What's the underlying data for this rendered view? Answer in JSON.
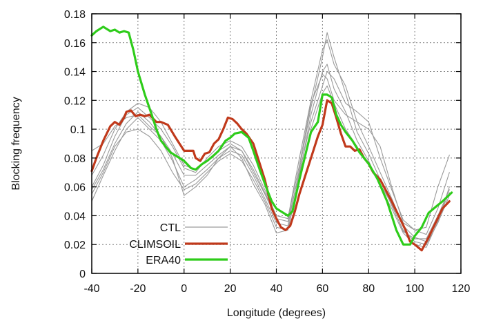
{
  "chart_data": {
    "type": "line",
    "xlabel": "Longitude (degrees)",
    "ylabel": "Blocking frequency",
    "xlim": [
      -40,
      120
    ],
    "ylim": [
      0,
      0.18
    ],
    "xticks": [
      -40,
      -20,
      0,
      20,
      40,
      60,
      80,
      100,
      120
    ],
    "yticks": [
      0,
      0.02,
      0.04,
      0.06,
      0.08,
      0.1,
      0.12,
      0.14,
      0.16,
      0.18
    ],
    "ytick_labels": [
      "0",
      "0.02",
      "0.04",
      "0.06",
      "0.08",
      "0.1",
      "0.12",
      "0.14",
      "0.16",
      "0.18"
    ],
    "grid": true,
    "legend_position": "bottom-left",
    "legend": [
      {
        "label": "CTL",
        "color": "#9a9a9a"
      },
      {
        "label": "CLIMSOIL",
        "color": "#c0391b"
      },
      {
        "label": "ERA40",
        "color": "#2ecc1a"
      }
    ],
    "series": [
      {
        "name": "CTL",
        "color": "#9a9a9a",
        "width": 1.1,
        "x": [
          -40,
          -35,
          -30,
          -25,
          -20,
          -15,
          -10,
          -5,
          0,
          5,
          10,
          15,
          20,
          25,
          30,
          35,
          40,
          45,
          50,
          55,
          60,
          62,
          65,
          70,
          75,
          80,
          85,
          90,
          95,
          100,
          105,
          110,
          115
        ],
        "y": [
          0.06,
          0.075,
          0.095,
          0.11,
          0.115,
          0.108,
          0.1,
          0.088,
          0.073,
          0.07,
          0.08,
          0.088,
          0.092,
          0.088,
          0.075,
          0.058,
          0.04,
          0.038,
          0.08,
          0.12,
          0.155,
          0.162,
          0.145,
          0.13,
          0.105,
          0.088,
          0.07,
          0.052,
          0.033,
          0.025,
          0.022,
          0.038,
          0.056
        ]
      },
      {
        "name": "",
        "color": "#9a9a9a",
        "width": 1.1,
        "x": [
          -40,
          -35,
          -30,
          -25,
          -20,
          -15,
          -10,
          -5,
          0,
          5,
          10,
          15,
          20,
          25,
          30,
          35,
          40,
          45,
          50,
          55,
          60,
          62,
          65,
          70,
          75,
          80,
          85,
          90,
          95,
          100,
          105,
          110,
          115
        ],
        "y": [
          0.05,
          0.068,
          0.085,
          0.1,
          0.108,
          0.1,
          0.092,
          0.078,
          0.06,
          0.065,
          0.072,
          0.08,
          0.085,
          0.082,
          0.068,
          0.052,
          0.035,
          0.033,
          0.072,
          0.115,
          0.15,
          0.167,
          0.15,
          0.125,
          0.098,
          0.083,
          0.065,
          0.047,
          0.03,
          0.022,
          0.02,
          0.035,
          0.054
        ]
      },
      {
        "name": "",
        "color": "#9a9a9a",
        "width": 1.1,
        "x": [
          -40,
          -35,
          -30,
          -25,
          -20,
          -15,
          -10,
          -5,
          0,
          5,
          10,
          15,
          20,
          25,
          30,
          35,
          40,
          45,
          50,
          55,
          60,
          62,
          65,
          70,
          75,
          80,
          85,
          90,
          95,
          100,
          105,
          110,
          115
        ],
        "y": [
          0.068,
          0.082,
          0.1,
          0.112,
          0.118,
          0.115,
          0.105,
          0.09,
          0.075,
          0.072,
          0.078,
          0.085,
          0.09,
          0.085,
          0.07,
          0.055,
          0.038,
          0.036,
          0.07,
          0.105,
          0.13,
          0.14,
          0.135,
          0.118,
          0.112,
          0.105,
          0.08,
          0.058,
          0.037,
          0.03,
          0.027,
          0.045,
          0.07
        ]
      },
      {
        "name": "",
        "color": "#9a9a9a",
        "width": 1.1,
        "x": [
          -40,
          -35,
          -30,
          -25,
          -20,
          -15,
          -10,
          -5,
          0,
          5,
          10,
          15,
          20,
          25,
          30,
          35,
          40,
          45,
          50,
          55,
          60,
          62,
          65,
          70,
          75,
          80,
          85,
          90,
          95,
          100,
          105,
          110,
          115
        ],
        "y": [
          0.055,
          0.07,
          0.088,
          0.098,
          0.1,
          0.095,
          0.085,
          0.07,
          0.058,
          0.062,
          0.07,
          0.078,
          0.083,
          0.078,
          0.065,
          0.05,
          0.032,
          0.03,
          0.068,
          0.11,
          0.14,
          0.145,
          0.128,
          0.112,
          0.092,
          0.078,
          0.06,
          0.045,
          0.028,
          0.02,
          0.018,
          0.036,
          0.06
        ]
      },
      {
        "name": "",
        "color": "#9a9a9a",
        "width": 1.1,
        "x": [
          -40,
          -35,
          -30,
          -25,
          -20,
          -15,
          -10,
          -5,
          0,
          5,
          10,
          15,
          20,
          25,
          30,
          35,
          40,
          45,
          50,
          55,
          60,
          62,
          65,
          70,
          75,
          80,
          85,
          90,
          95,
          100,
          105,
          110,
          115
        ],
        "y": [
          0.085,
          0.09,
          0.102,
          0.108,
          0.11,
          0.102,
          0.095,
          0.083,
          0.068,
          0.068,
          0.075,
          0.082,
          0.088,
          0.085,
          0.072,
          0.056,
          0.04,
          0.038,
          0.075,
          0.118,
          0.138,
          0.135,
          0.12,
          0.11,
          0.105,
          0.1,
          0.088,
          0.06,
          0.035,
          0.03,
          0.032,
          0.06,
          0.082
        ]
      },
      {
        "name": "",
        "color": "#9a9a9a",
        "width": 1.1,
        "x": [
          -40,
          -35,
          -30,
          -25,
          -20,
          -15,
          -10,
          -5,
          0,
          5,
          10,
          15,
          20,
          25,
          30,
          35,
          40,
          45,
          50,
          55,
          60,
          62,
          65,
          70,
          75,
          80,
          85,
          90,
          95,
          100,
          105,
          110,
          115
        ],
        "y": [
          0.058,
          0.072,
          0.09,
          0.104,
          0.112,
          0.105,
          0.095,
          0.08,
          0.054,
          0.06,
          0.068,
          0.08,
          0.088,
          0.08,
          0.062,
          0.048,
          0.028,
          0.03,
          0.065,
          0.1,
          0.125,
          0.13,
          0.118,
          0.1,
          0.088,
          0.075,
          0.062,
          0.048,
          0.029,
          0.024,
          0.024,
          0.04,
          0.058
        ]
      },
      {
        "name": "CLIMSOIL",
        "color": "#c0391b",
        "width": 3.2,
        "x": [
          -40,
          -38,
          -35,
          -32,
          -30,
          -28,
          -26,
          -25,
          -23,
          -21,
          -19,
          -17,
          -15,
          -12,
          -10,
          -7,
          -4,
          -2,
          0,
          2,
          4,
          5,
          7,
          9,
          11,
          13,
          15,
          17,
          19,
          21,
          23,
          25,
          27,
          30,
          32,
          35,
          38,
          40,
          42,
          44,
          46,
          48,
          50,
          52,
          55,
          58,
          60,
          62,
          64,
          66,
          68,
          70,
          72,
          74,
          76,
          78,
          80,
          82,
          85,
          88,
          90,
          93,
          96,
          98,
          100,
          103,
          106,
          109,
          112,
          115
        ],
        "y": [
          0.071,
          0.08,
          0.092,
          0.102,
          0.105,
          0.103,
          0.108,
          0.112,
          0.113,
          0.109,
          0.11,
          0.109,
          0.11,
          0.105,
          0.105,
          0.103,
          0.095,
          0.09,
          0.085,
          0.085,
          0.085,
          0.08,
          0.078,
          0.083,
          0.084,
          0.09,
          0.093,
          0.1,
          0.108,
          0.107,
          0.104,
          0.1,
          0.097,
          0.09,
          0.08,
          0.065,
          0.045,
          0.038,
          0.032,
          0.03,
          0.033,
          0.043,
          0.055,
          0.065,
          0.08,
          0.095,
          0.103,
          0.12,
          0.118,
          0.108,
          0.097,
          0.088,
          0.088,
          0.085,
          0.086,
          0.08,
          0.076,
          0.07,
          0.065,
          0.056,
          0.05,
          0.04,
          0.03,
          0.022,
          0.02,
          0.016,
          0.025,
          0.035,
          0.045,
          0.05
        ]
      },
      {
        "name": "ERA40",
        "color": "#2ecc1a",
        "width": 3.2,
        "x": [
          -40,
          -38,
          -35,
          -32,
          -30,
          -28,
          -26,
          -24,
          -22,
          -20,
          -17,
          -14,
          -12,
          -10,
          -8,
          -6,
          -4,
          -2,
          0,
          3,
          5,
          8,
          10,
          13,
          15,
          18,
          20,
          22,
          25,
          28,
          30,
          33,
          36,
          38,
          40,
          42,
          45,
          47,
          50,
          53,
          55,
          58,
          60,
          62,
          64,
          66,
          68,
          70,
          73,
          76,
          80,
          84,
          88,
          92,
          95,
          98,
          100,
          103,
          106,
          109,
          112,
          116
        ],
        "y": [
          0.165,
          0.168,
          0.171,
          0.168,
          0.169,
          0.167,
          0.168,
          0.167,
          0.155,
          0.14,
          0.124,
          0.11,
          0.1,
          0.092,
          0.088,
          0.084,
          0.082,
          0.08,
          0.078,
          0.073,
          0.072,
          0.076,
          0.078,
          0.082,
          0.085,
          0.092,
          0.094,
          0.097,
          0.098,
          0.094,
          0.085,
          0.071,
          0.058,
          0.05,
          0.045,
          0.043,
          0.04,
          0.043,
          0.065,
          0.085,
          0.098,
          0.105,
          0.124,
          0.124,
          0.122,
          0.11,
          0.103,
          0.098,
          0.092,
          0.084,
          0.076,
          0.065,
          0.05,
          0.03,
          0.02,
          0.02,
          0.026,
          0.032,
          0.042,
          0.046,
          0.05,
          0.056
        ]
      }
    ]
  }
}
